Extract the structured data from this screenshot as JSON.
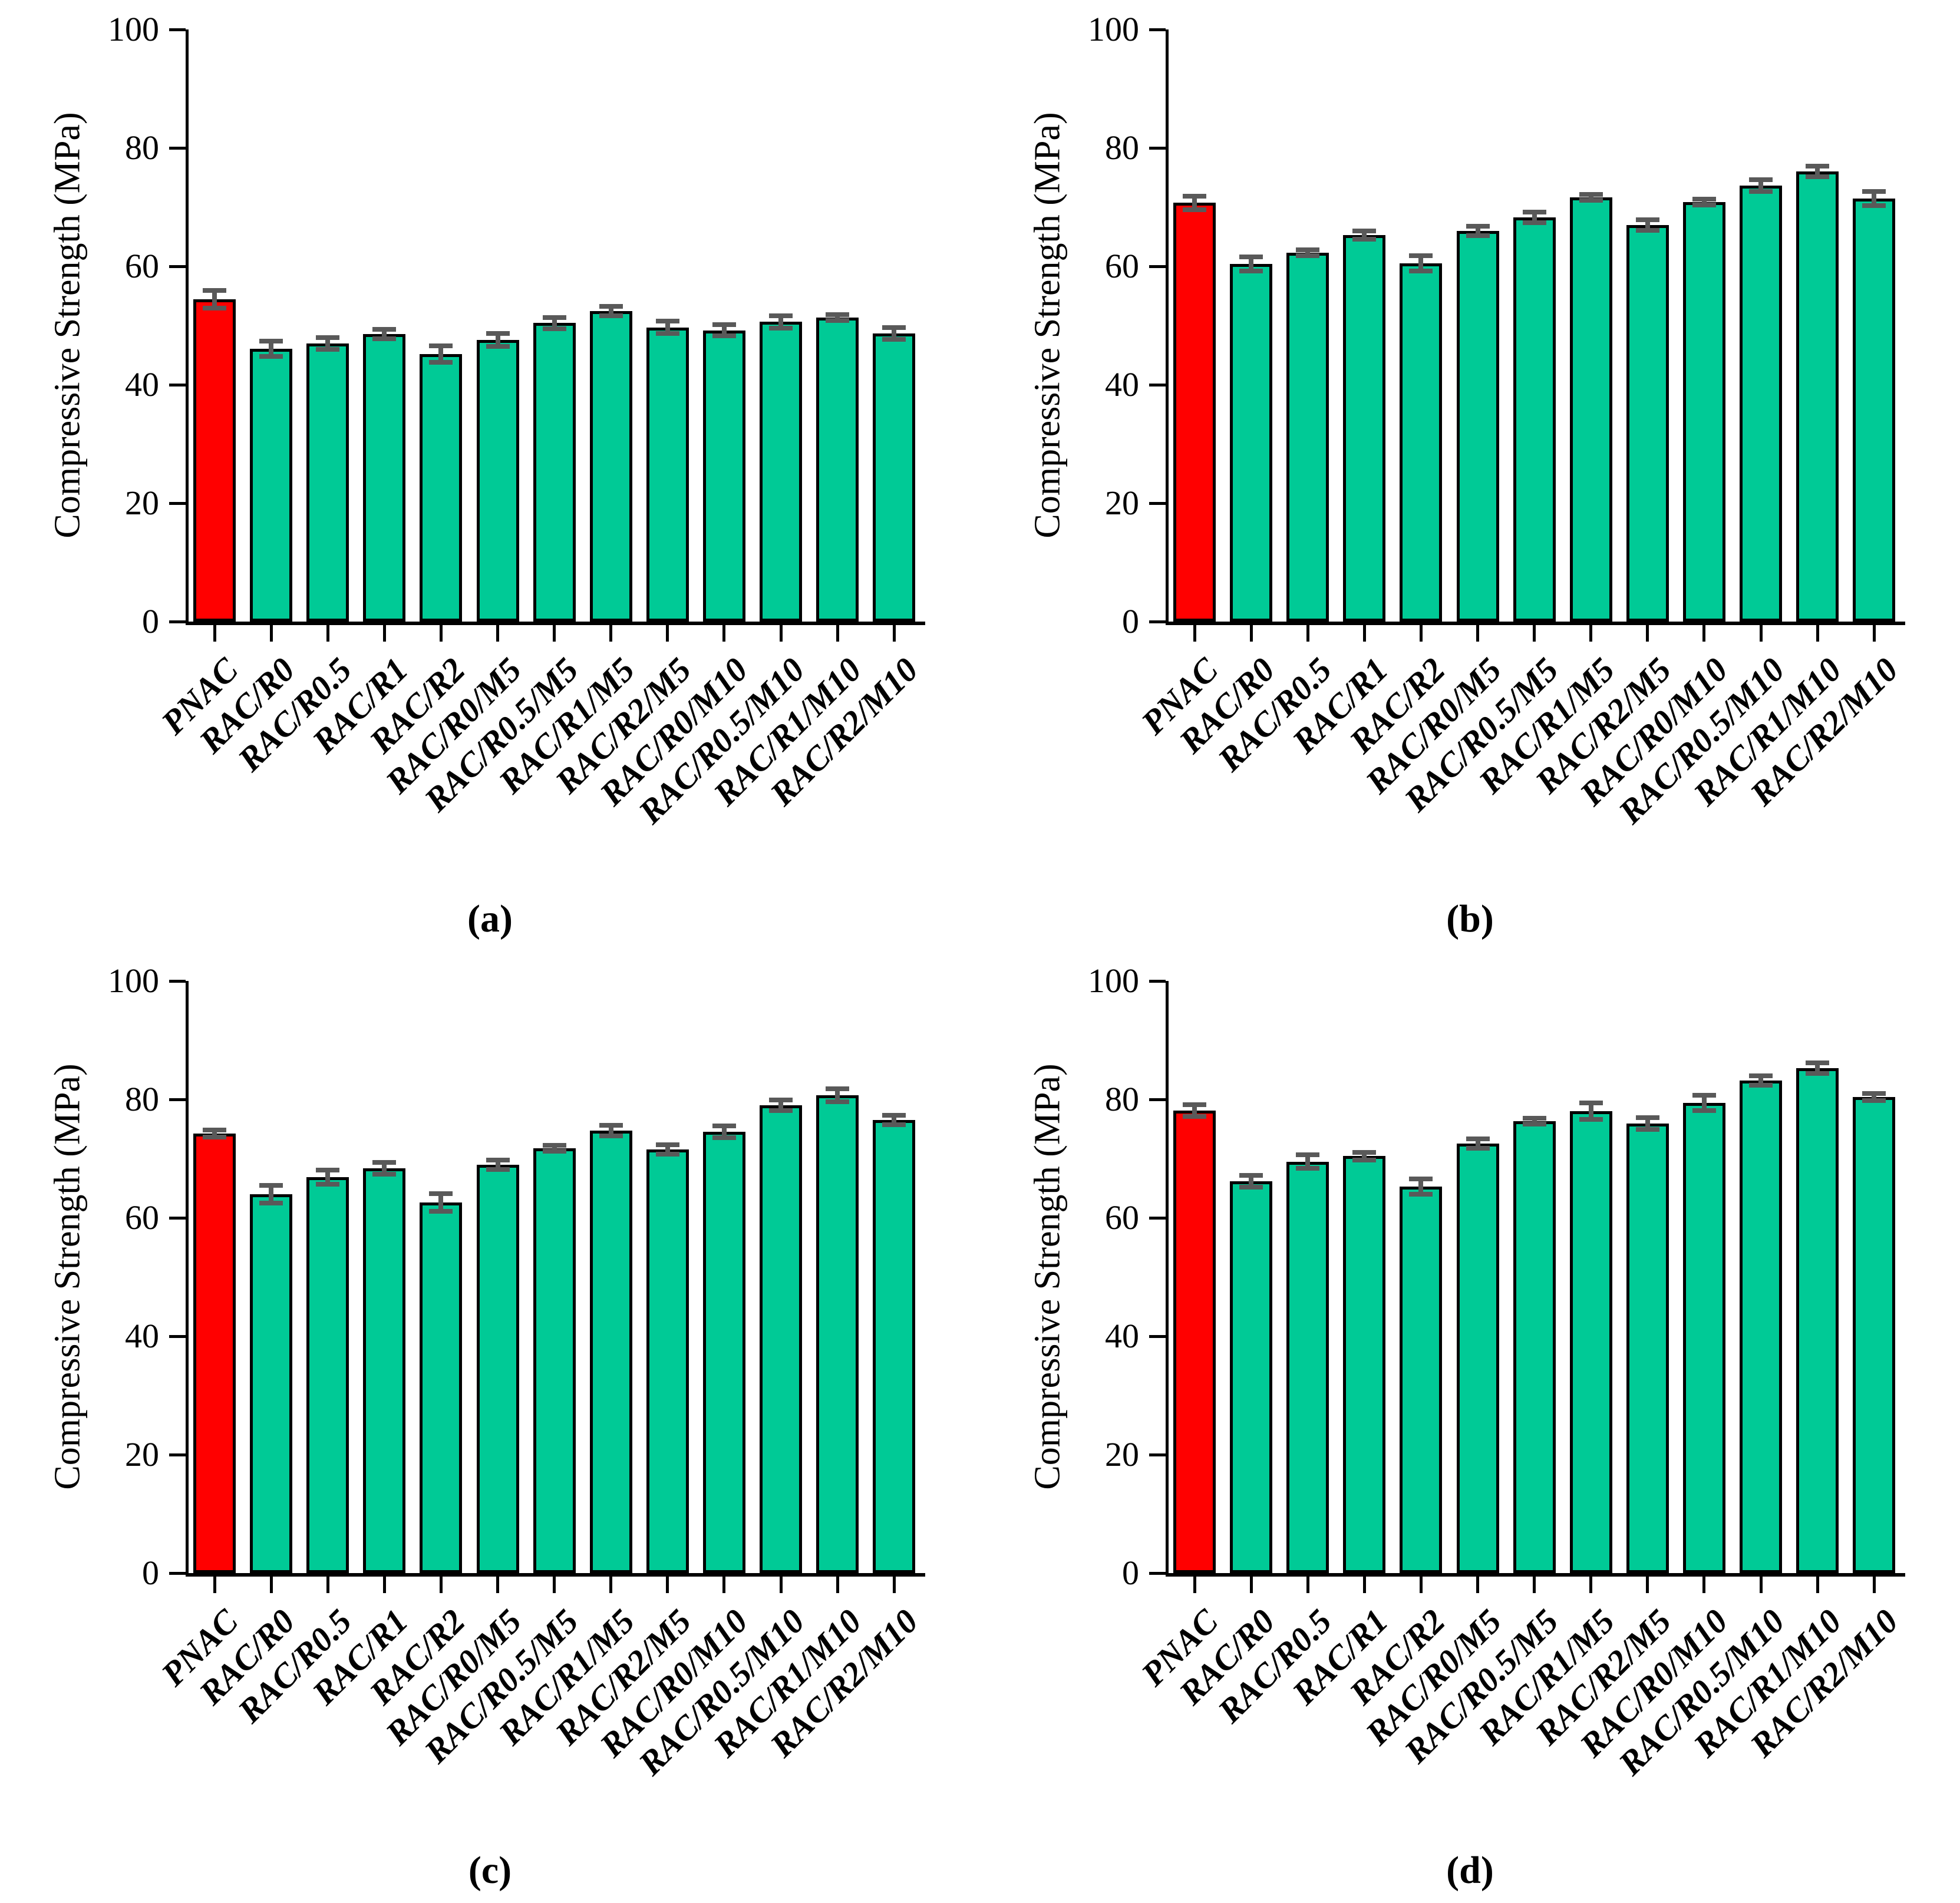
{
  "figure": {
    "background": "#FFFFFF",
    "colors": {
      "bar": "#00CA96",
      "highlight": "#FF0000",
      "error_bar": "#595959",
      "axis": "#000000"
    },
    "ylabel": "Compressive Strength (MPa)"
  },
  "chart_data": [
    {
      "type": "bar",
      "panel_label": "(a)",
      "title": "",
      "xlabel": "",
      "ylabel": "Compressive Strength (MPa)",
      "ylim": [
        0,
        100
      ],
      "yticks": [
        0,
        20,
        40,
        60,
        80,
        100
      ],
      "grid": false,
      "legend_position": "none",
      "categories": [
        "PNAC",
        "RAC/R0",
        "RAC/R0.5",
        "RAC/R1",
        "RAC/R2",
        "RAC/R0/M5",
        "RAC/R0.5/M5",
        "RAC/R1/M5",
        "RAC/R2/M5",
        "RAC/R0/M10",
        "RAC/R0.5/M10",
        "RAC/R1/M10",
        "RAC/R2/M10"
      ],
      "values": [
        54.4,
        46.1,
        47.0,
        48.6,
        45.2,
        47.6,
        50.4,
        52.4,
        49.7,
        49.2,
        50.6,
        51.3,
        48.7
      ],
      "errors": [
        1.5,
        1.3,
        1.0,
        0.8,
        1.4,
        1.1,
        0.9,
        0.8,
        1.0,
        0.9,
        1.0,
        0.5,
        1.0
      ],
      "highlight_index": 0,
      "highlight_color": "#FF0000",
      "bar_color": "#00CA96"
    },
    {
      "type": "bar",
      "panel_label": "(b)",
      "title": "",
      "xlabel": "",
      "ylabel": "Compressive Strength (MPa)",
      "ylim": [
        0,
        100
      ],
      "yticks": [
        0,
        20,
        40,
        60,
        80,
        100
      ],
      "grid": false,
      "legend_position": "none",
      "categories": [
        "PNAC",
        "RAC/R0",
        "RAC/R0.5",
        "RAC/R1",
        "RAC/R2",
        "RAC/R0/M5",
        "RAC/R0.5/M5",
        "RAC/R1/M5",
        "RAC/R2/M5",
        "RAC/R0/M10",
        "RAC/R0.5/M10",
        "RAC/R1/M10",
        "RAC/R2/M10"
      ],
      "values": [
        70.7,
        60.4,
        62.3,
        65.3,
        60.5,
        66.0,
        68.3,
        71.6,
        67.0,
        70.8,
        73.6,
        76.0,
        71.4
      ],
      "errors": [
        1.1,
        1.2,
        0.5,
        0.7,
        1.3,
        0.8,
        0.9,
        0.5,
        0.9,
        0.5,
        1.0,
        0.9,
        1.2
      ],
      "highlight_index": 0,
      "highlight_color": "#FF0000",
      "bar_color": "#00CA96"
    },
    {
      "type": "bar",
      "panel_label": "(c)",
      "title": "",
      "xlabel": "",
      "ylabel": "Compressive Strength (MPa)",
      "ylim": [
        0,
        100
      ],
      "yticks": [
        0,
        20,
        40,
        60,
        80,
        100
      ],
      "grid": false,
      "legend_position": "none",
      "categories": [
        "PNAC",
        "RAC/R0",
        "RAC/R0.5",
        "RAC/R1",
        "RAC/R2",
        "RAC/R0/M5",
        "RAC/R0.5/M5",
        "RAC/R1/M5",
        "RAC/R2/M5",
        "RAC/R0/M10",
        "RAC/R0.5/M10",
        "RAC/R1/M10",
        "RAC/R2/M10"
      ],
      "values": [
        74.2,
        64.0,
        66.9,
        68.4,
        62.6,
        69.0,
        71.7,
        74.7,
        71.5,
        74.5,
        79.0,
        80.7,
        76.5
      ],
      "errors": [
        0.6,
        1.5,
        1.2,
        1.0,
        1.5,
        0.8,
        0.5,
        0.9,
        0.8,
        1.0,
        0.9,
        1.1,
        0.8
      ],
      "highlight_index": 0,
      "highlight_color": "#FF0000",
      "bar_color": "#00CA96"
    },
    {
      "type": "bar",
      "panel_label": "(d)",
      "title": "",
      "xlabel": "",
      "ylabel": "Compressive Strength (MPa)",
      "ylim": [
        0,
        100
      ],
      "yticks": [
        0,
        20,
        40,
        60,
        80,
        100
      ],
      "grid": false,
      "legend_position": "none",
      "categories": [
        "PNAC",
        "RAC/R0",
        "RAC/R0.5",
        "RAC/R1",
        "RAC/R2",
        "RAC/R0/M5",
        "RAC/R0.5/M5",
        "RAC/R1/M5",
        "RAC/R2/M5",
        "RAC/R0/M10",
        "RAC/R0.5/M10",
        "RAC/R1/M10",
        "RAC/R2/M10"
      ],
      "values": [
        78.1,
        66.2,
        69.5,
        70.4,
        65.3,
        72.5,
        76.3,
        78.0,
        75.9,
        79.4,
        83.2,
        85.3,
        80.4
      ],
      "errors": [
        1.0,
        1.0,
        1.1,
        0.6,
        1.3,
        0.8,
        0.5,
        1.4,
        1.0,
        1.3,
        0.8,
        0.9,
        0.6
      ],
      "highlight_index": 0,
      "highlight_color": "#FF0000",
      "bar_color": "#00CA96"
    }
  ]
}
